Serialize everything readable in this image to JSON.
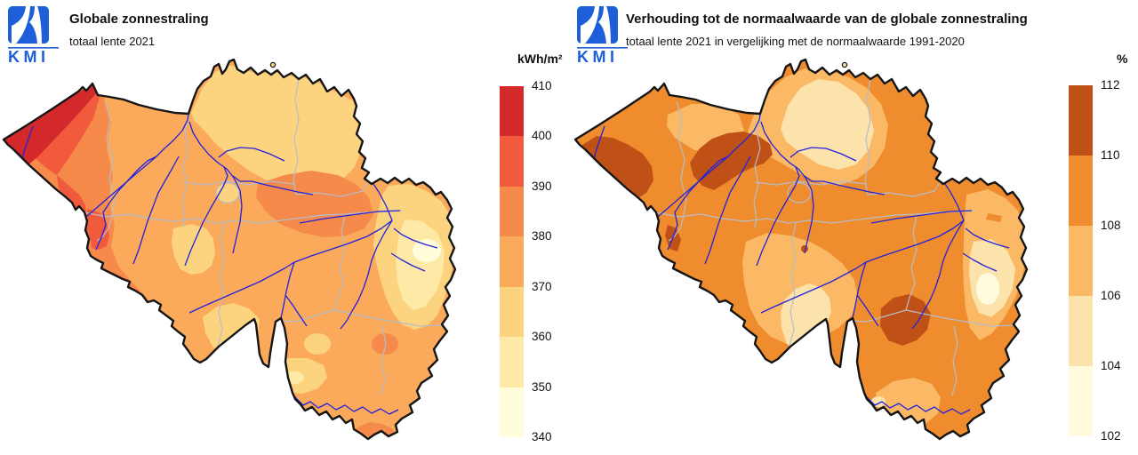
{
  "page": {
    "background": "#ffffff"
  },
  "panels": [
    {
      "logo": {
        "text": "KMI",
        "color": "#1e5fd9"
      },
      "title": "Globale zonnestraling",
      "subtitle": "totaal lente 2021",
      "legend": {
        "unit": "kWh/m²",
        "tick_labels": [
          "410",
          "400",
          "390",
          "380",
          "370",
          "360",
          "350",
          "340"
        ],
        "band_colors_top_to_bottom": [
          "#d3292b",
          "#f15a3d",
          "#f68a4b",
          "#fba95a",
          "#fcd480",
          "#feeaa6",
          "#fffddb"
        ],
        "band_ranges_top_to_bottom": [
          "400-410",
          "390-400",
          "380-390",
          "370-380",
          "360-370",
          "350-360",
          "340-350"
        ]
      },
      "map_summary": "Total global solar radiation, spring 2021: highest values (400-410 kWh/m²) along the northwest coast of West Flanders, decreasing inland to 370-390 over central Belgium, palest values (340-360 kWh/m²) in the far east around the High Fens."
    },
    {
      "logo": {
        "text": "KMI",
        "color": "#1e5fd9"
      },
      "title": "Verhouding tot de normaalwaarde van de globale zonnestraling",
      "subtitle": "totaal lente 2021 in vergelijking met de normaalwaarde 1991-2020",
      "legend": {
        "unit": "%",
        "tick_labels": [
          "112",
          "110",
          "108",
          "106",
          "104",
          "102"
        ],
        "band_colors_top_to_bottom": [
          "#bf5116",
          "#ee8c2e",
          "#fbb966",
          "#fce3ac",
          "#fffbdc"
        ],
        "band_ranges_top_to_bottom": [
          "110-112",
          "108-110",
          "106-108",
          "104-106",
          "102-104"
        ]
      },
      "map_summary": "Ratio to the 1991-2020 normal: 110-112% patches over southern West Flanders and Flemish Brabant, mostly 108-110% elsewhere, 104-106% in the Kempen and the Botte du Hainaut, palest (102-104%) spots in the far east."
    }
  ],
  "map": {
    "country": "België / Belgium",
    "outline_color": "#151515",
    "province_border_color": "#b7bdc9",
    "river_color": "#2222dd",
    "water_note": "Scheldt estuary shown as white notch in the north; Givet (France) notch in the south"
  },
  "chart_data": [
    {
      "type": "choropleth_map",
      "region": "Belgium",
      "title": "Globale zonnestraling",
      "subtitle": "totaal lente 2021",
      "unit": "kWh/m²",
      "scale_ticks": [
        410,
        400,
        390,
        380,
        370,
        360,
        350,
        340
      ],
      "bands": [
        {
          "range": "400-410",
          "color": "#d3292b",
          "where": "NW coastal strip"
        },
        {
          "range": "390-400",
          "color": "#f15a3d",
          "where": "West Flanders, Mouscron border"
        },
        {
          "range": "380-390",
          "color": "#f68a4b",
          "where": "west-central Belgium, Hesbaye, SE spots"
        },
        {
          "range": "370-380",
          "color": "#fba95a",
          "where": "central Belgium and Ardennes (base)"
        },
        {
          "range": "360-370",
          "color": "#fcd480",
          "where": "Kempen (NE), Brussels spot, south-central"
        },
        {
          "range": "350-360",
          "color": "#feeaa6",
          "where": "far east (Verviers area)"
        },
        {
          "range": "340-350",
          "color": "#fffddb",
          "where": "palest spot far east"
        }
      ]
    },
    {
      "type": "choropleth_map",
      "region": "Belgium",
      "title": "Verhouding tot de normaalwaarde van de globale zonnestraling",
      "subtitle": "totaal lente 2021 in vergelijking met de normaalwaarde 1991-2020",
      "unit": "%",
      "scale_ticks": [
        112,
        110,
        108,
        106,
        104,
        102
      ],
      "bands": [
        {
          "range": "110-112",
          "color": "#bf5116",
          "where": "southern West Flanders, Flemish Brabant, central Ardennes patch"
        },
        {
          "range": "108-110",
          "color": "#ee8c2e",
          "where": "most of the country (base)"
        },
        {
          "range": "106-108",
          "color": "#fbb966",
          "where": "Ghent area, Kempen, south-central, east"
        },
        {
          "range": "104-106",
          "color": "#fce3ac",
          "where": "NE Kempen core, Botte du Hainaut, far east"
        },
        {
          "range": "102-104",
          "color": "#fffbdc",
          "where": "palest spots far east"
        }
      ]
    }
  ]
}
